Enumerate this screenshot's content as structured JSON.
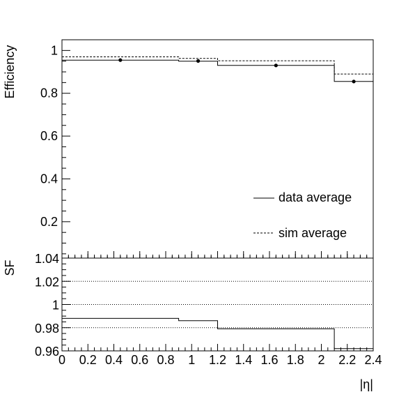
{
  "chart_data": [
    {
      "type": "line",
      "panel": "top",
      "ylabel": "Efficiency",
      "xlim": [
        0,
        2.4
      ],
      "ylim": [
        0.03,
        1.05
      ],
      "ytick_values": [
        0.2,
        0.4,
        0.6,
        0.8,
        1
      ],
      "ytick_labels": [
        "0.2",
        "0.4",
        "0.6",
        "0.8",
        "1"
      ],
      "legend_placement": "bottom-right",
      "series": [
        {
          "name": "data average",
          "style": "solid step",
          "bins": [
            [
              0,
              0.9
            ],
            [
              0.9,
              1.2
            ],
            [
              1.2,
              2.1
            ],
            [
              2.1,
              2.4
            ]
          ],
          "values": [
            0.955,
            0.95,
            0.93,
            0.855
          ]
        },
        {
          "name": "sim average",
          "style": "dashed step",
          "bins": [
            [
              0,
              0.9
            ],
            [
              0.9,
              1.2
            ],
            [
              1.2,
              2.1
            ],
            [
              2.1,
              2.4
            ]
          ],
          "values": [
            0.97,
            0.963,
            0.952,
            0.89
          ]
        }
      ],
      "points": {
        "x": [
          0.45,
          1.05,
          1.65,
          2.25
        ],
        "y": [
          0.955,
          0.951,
          0.93,
          0.855
        ]
      }
    },
    {
      "type": "line",
      "panel": "bottom",
      "ylabel": "SF",
      "xlabel": "|η|",
      "xlim": [
        0,
        2.4
      ],
      "ylim": [
        0.96,
        1.04
      ],
      "xtick_values": [
        0,
        0.2,
        0.4,
        0.6,
        0.8,
        1,
        1.2,
        1.4,
        1.6,
        1.8,
        2,
        2.2,
        2.4
      ],
      "xtick_labels": [
        "0",
        "0.2",
        "0.4",
        "0.6",
        "0.8",
        "1",
        "1.2",
        "1.4",
        "1.6",
        "1.8",
        "2",
        "2.2",
        "2.4"
      ],
      "ytick_values": [
        0.96,
        0.98,
        1,
        1.02,
        1.04
      ],
      "ytick_labels": [
        "0.96",
        "0.98",
        "1",
        "1.02",
        "1.04"
      ],
      "gridlines_y": [
        0.98,
        1,
        1.02
      ],
      "series": [
        {
          "name": "SF",
          "style": "solid step",
          "bins": [
            [
              0,
              0.9
            ],
            [
              0.9,
              1.2
            ],
            [
              1.2,
              2.1
            ],
            [
              2.1,
              2.4
            ]
          ],
          "values": [
            0.988,
            0.986,
            0.979,
            0.962
          ]
        }
      ]
    }
  ]
}
